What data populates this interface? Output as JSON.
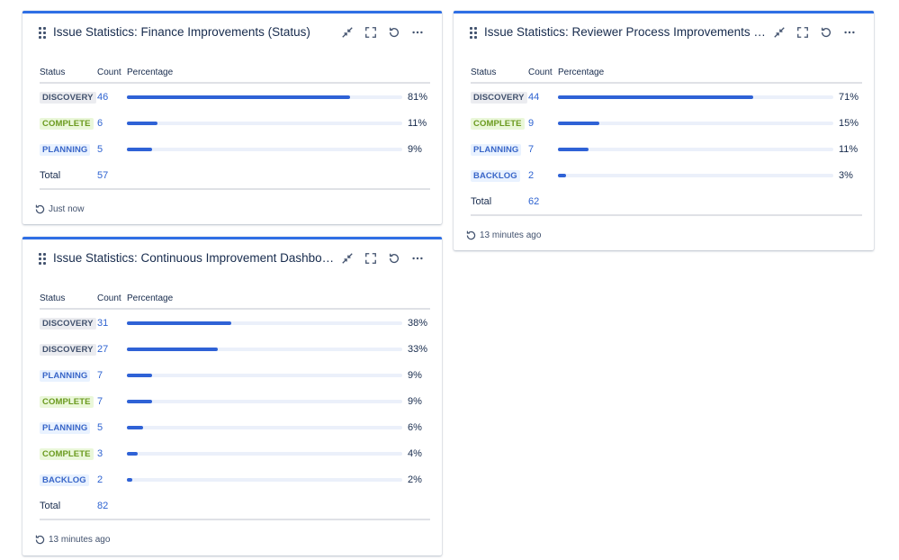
{
  "gadgets": [
    {
      "title": "Issue Statistics: Finance Improvements (Status)",
      "columns": {
        "status": "Status",
        "count": "Count",
        "percentage": "Percentage"
      },
      "rows": [
        {
          "status": "DISCOVERY",
          "kind": "discovery",
          "count": "46",
          "pct": "81%",
          "fill": 0.81
        },
        {
          "status": "COMPLETE",
          "kind": "complete",
          "count": "6",
          "pct": "11%",
          "fill": 0.11
        },
        {
          "status": "PLANNING",
          "kind": "planning",
          "count": "5",
          "pct": "9%",
          "fill": 0.09
        }
      ],
      "total_label": "Total",
      "total": "57",
      "footer": "Just now"
    },
    {
      "title": "Issue Statistics: Reviewer Process Improvements (Sta...",
      "columns": {
        "status": "Status",
        "count": "Count",
        "percentage": "Percentage"
      },
      "rows": [
        {
          "status": "DISCOVERY",
          "kind": "discovery",
          "count": "44",
          "pct": "71%",
          "fill": 0.71
        },
        {
          "status": "COMPLETE",
          "kind": "complete",
          "count": "9",
          "pct": "15%",
          "fill": 0.15
        },
        {
          "status": "PLANNING",
          "kind": "planning",
          "count": "7",
          "pct": "11%",
          "fill": 0.11
        },
        {
          "status": "BACKLOG",
          "kind": "backlog",
          "count": "2",
          "pct": "3%",
          "fill": 0.03
        }
      ],
      "total_label": "Total",
      "total": "62",
      "footer": "13 minutes ago"
    },
    {
      "title": "Issue Statistics: Continuous Improvement Dashboar...",
      "columns": {
        "status": "Status",
        "count": "Count",
        "percentage": "Percentage"
      },
      "rows": [
        {
          "status": "DISCOVERY",
          "kind": "discovery",
          "count": "31",
          "pct": "38%",
          "fill": 0.38
        },
        {
          "status": "DISCOVERY",
          "kind": "discovery",
          "count": "27",
          "pct": "33%",
          "fill": 0.33
        },
        {
          "status": "PLANNING",
          "kind": "planning",
          "count": "7",
          "pct": "9%",
          "fill": 0.09
        },
        {
          "status": "COMPLETE",
          "kind": "complete",
          "count": "7",
          "pct": "9%",
          "fill": 0.09
        },
        {
          "status": "PLANNING",
          "kind": "planning",
          "count": "5",
          "pct": "6%",
          "fill": 0.06
        },
        {
          "status": "COMPLETE",
          "kind": "complete",
          "count": "3",
          "pct": "4%",
          "fill": 0.04
        },
        {
          "status": "BACKLOG",
          "kind": "backlog",
          "count": "2",
          "pct": "2%",
          "fill": 0.02
        }
      ],
      "total_label": "Total",
      "total": "82",
      "footer": "13 minutes ago"
    }
  ],
  "icons": {
    "drag": "drag-handle-icon",
    "minimize": "minimize-icon",
    "fullscreen": "fullscreen-icon",
    "refresh": "refresh-icon",
    "more": "more-icon"
  },
  "colors": {
    "accent": "#2f6fe5",
    "bar": "#2f62d6",
    "link": "#2e63d1"
  }
}
